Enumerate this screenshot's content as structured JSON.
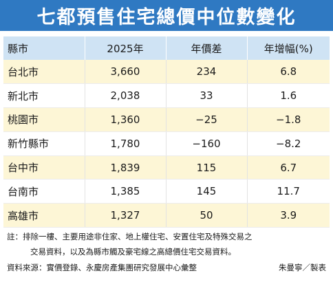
{
  "title": "七都預售住宅總價中位數變化",
  "table": {
    "headers": [
      "縣市",
      "2025年",
      "年價差",
      "年增幅(%)"
    ],
    "rows": [
      {
        "city": "台北市",
        "price": "3,660",
        "diff": "234",
        "growth": "6.8"
      },
      {
        "city": "新北市",
        "price": "2,038",
        "diff": "33",
        "growth": "1.6"
      },
      {
        "city": "桃園市",
        "price": "1,360",
        "diff": "−25",
        "growth": "−1.8"
      },
      {
        "city": "新竹縣市",
        "price": "1,780",
        "diff": "−160",
        "growth": "−8.2"
      },
      {
        "city": "台中市",
        "price": "1,839",
        "diff": "115",
        "growth": "6.7"
      },
      {
        "city": "台南市",
        "price": "1,385",
        "diff": "145",
        "growth": "11.7"
      },
      {
        "city": "高雄市",
        "price": "1,327",
        "diff": "50",
        "growth": "3.9"
      }
    ]
  },
  "note_line1": "註：排除一樓、主要用途非住家、地上權住宅、安置住宅及特殊交易之",
  "note_line2": "交易資料，以及為縣市觸及豪宅線之高總價住宅交易資料。",
  "source": "資料來源：實價登錄、永慶房產集團研究發展中心彙整",
  "author": "朱曼寧／製表",
  "colors": {
    "title_bg": "#2f79c2",
    "header_bg": "#cfe3f4",
    "stripe_bg": "#fdf6d6"
  }
}
